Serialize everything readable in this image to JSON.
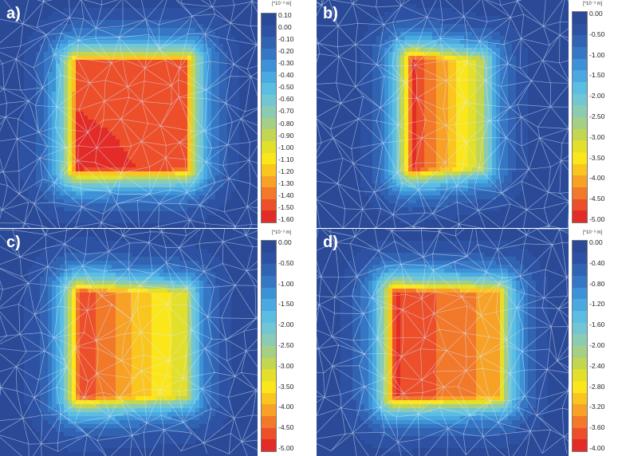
{
  "panels": [
    {
      "letter": "a)",
      "unit": "[*10⁻³ m]",
      "ticks": [
        "0.10",
        "0.00",
        "-0.10",
        "-0.20",
        "-0.30",
        "-0.40",
        "-0.50",
        "-0.60",
        "-0.70",
        "-0.80",
        "-0.90",
        "-1.00",
        "-1.10",
        "-1.20",
        "-1.30",
        "-1.40",
        "-1.50",
        "-1.60"
      ],
      "colors": [
        "#2a4a98",
        "#2d52a3",
        "#3163b3",
        "#3577c4",
        "#3d91d6",
        "#4aa9e0",
        "#5cbde3",
        "#72c6d4",
        "#8bcbb4",
        "#a6cf86",
        "#c3d651",
        "#e2e02a",
        "#fbe61c",
        "#fbc520",
        "#f7a226",
        "#f2782a",
        "#ec4f2a",
        "#e32b27"
      ],
      "field": {
        "type": "uniform",
        "min": -1.6,
        "max": 0.1
      }
    },
    {
      "letter": "b)",
      "unit": "[*10⁻³ m]",
      "ticks": [
        "0.00",
        "-0.50",
        "-1.00",
        "-1.50",
        "-2.00",
        "-2.50",
        "-3.00",
        "-3.50",
        "-4.00",
        "-4.50",
        "-5.00"
      ],
      "colors": [
        "#2a4a98",
        "#2d52a3",
        "#3163b3",
        "#3577c4",
        "#3d91d6",
        "#4aa9e0",
        "#5cbde3",
        "#72c6d4",
        "#8bcbb4",
        "#a6cf86",
        "#c3d651",
        "#e2e02a",
        "#fbe61c",
        "#fbc520",
        "#f7a226",
        "#f2782a",
        "#ec4f2a",
        "#e32b27"
      ],
      "field": {
        "type": "gradient",
        "min": -5.0,
        "max": 0.0,
        "left": -4.8,
        "right": -2.9
      }
    },
    {
      "letter": "c)",
      "unit": "[*10⁻³ m]",
      "ticks": [
        "0.00",
        "-0.50",
        "-1.00",
        "-1.50",
        "-2.00",
        "-2.50",
        "-3.00",
        "-3.50",
        "-4.00",
        "-4.50",
        "-5.00"
      ],
      "colors": [
        "#2a4a98",
        "#2d52a3",
        "#3163b3",
        "#3577c4",
        "#3d91d6",
        "#4aa9e0",
        "#5cbde3",
        "#72c6d4",
        "#8bcbb4",
        "#a6cf86",
        "#c3d651",
        "#e2e02a",
        "#fbe61c",
        "#fbc520",
        "#f7a226",
        "#f2782a",
        "#ec4f2a",
        "#e32b27"
      ],
      "field": {
        "type": "gradient",
        "min": -5.0,
        "max": 0.0,
        "left": -4.7,
        "right": -3.1
      }
    },
    {
      "letter": "d)",
      "unit": "[*10⁻³ m]",
      "ticks": [
        "0.00",
        "-0.40",
        "-0.80",
        "-1.20",
        "-1.60",
        "-2.00",
        "-2.40",
        "-2.80",
        "-3.20",
        "-3.60",
        "-4.00"
      ],
      "colors": [
        "#2a4a98",
        "#2d52a3",
        "#3163b3",
        "#3577c4",
        "#3d91d6",
        "#4aa9e0",
        "#5cbde3",
        "#72c6d4",
        "#8bcbb4",
        "#a6cf86",
        "#c3d651",
        "#e2e02a",
        "#fbe61c",
        "#fbc520",
        "#f7a226",
        "#f2782a",
        "#ec4f2a",
        "#e32b27"
      ],
      "field": {
        "type": "gradient",
        "min": -4.0,
        "max": 0.0,
        "left": -3.8,
        "right": -3.2
      }
    }
  ]
}
